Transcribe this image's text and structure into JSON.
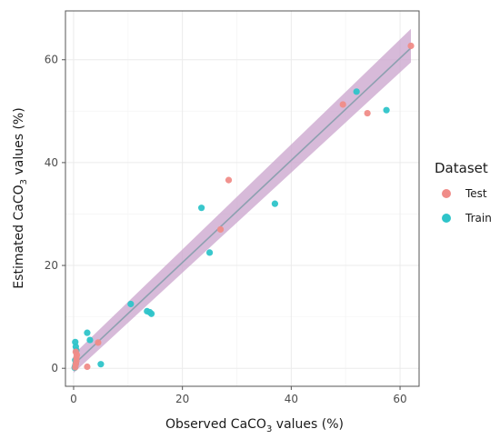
{
  "chart_data": {
    "type": "scatter",
    "xlabel": {
      "pre": "Observed CaCO",
      "sub": "3",
      "post": " values (%)"
    },
    "ylabel": {
      "pre": "Estimated CaCO",
      "sub": "3",
      "post": " values (%)"
    },
    "xlim": [
      -1.5,
      63.5
    ],
    "ylim": [
      -3.5,
      69.5
    ],
    "x_ticks": [
      0,
      20,
      40,
      60
    ],
    "y_ticks": [
      0,
      20,
      40,
      60
    ],
    "grid": true,
    "legend": {
      "title": "Dataset",
      "position": "right"
    },
    "fit_line": {
      "x": [
        0,
        62
      ],
      "y": [
        0.7,
        62.3
      ],
      "color": "#8da0b0"
    },
    "confidence_band": {
      "x": [
        0,
        62
      ],
      "lower": [
        -0.9,
        59.5
      ],
      "upper": [
        2.7,
        66.0
      ],
      "color": "#c9a3cc"
    },
    "series": [
      {
        "name": "Test",
        "color": "#f08c88",
        "points": [
          [
            0.3,
            0.2
          ],
          [
            0.4,
            0.8
          ],
          [
            0.5,
            1.4
          ],
          [
            0.5,
            2.0
          ],
          [
            0.6,
            2.6
          ],
          [
            0.4,
            3.2
          ],
          [
            2.5,
            0.3
          ],
          [
            4.5,
            5.0
          ],
          [
            27.0,
            27.0
          ],
          [
            28.5,
            36.6
          ],
          [
            49.5,
            51.3
          ],
          [
            54.0,
            49.6
          ],
          [
            62.0,
            62.7
          ]
        ]
      },
      {
        "name": "Train",
        "color": "#2ec4c9",
        "points": [
          [
            0.2,
            0.1
          ],
          [
            0.3,
            0.5
          ],
          [
            0.4,
            1.0
          ],
          [
            0.3,
            1.6
          ],
          [
            0.5,
            3.5
          ],
          [
            0.4,
            4.2
          ],
          [
            0.3,
            5.1
          ],
          [
            2.5,
            6.9
          ],
          [
            3.0,
            5.5
          ],
          [
            5.0,
            0.8
          ],
          [
            10.5,
            12.5
          ],
          [
            13.5,
            11.1
          ],
          [
            14.0,
            10.9
          ],
          [
            14.3,
            10.6
          ],
          [
            23.5,
            31.2
          ],
          [
            25.0,
            22.5
          ],
          [
            37.0,
            32.0
          ],
          [
            52.0,
            53.8
          ],
          [
            57.5,
            50.2
          ]
        ]
      }
    ]
  }
}
